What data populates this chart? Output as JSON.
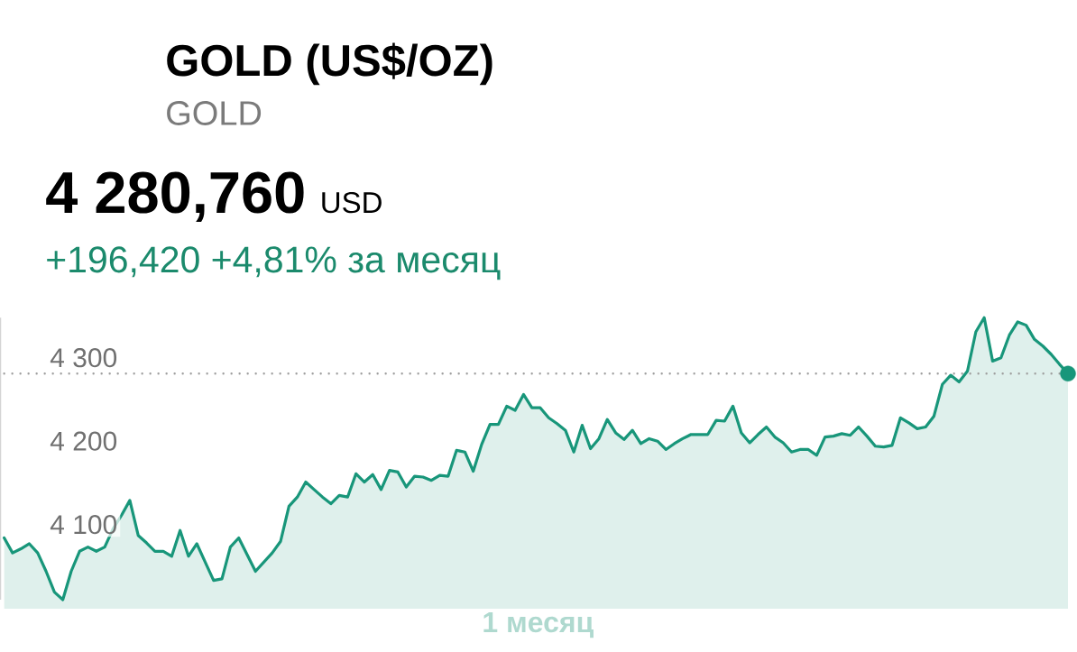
{
  "chart_data": {
    "type": "area",
    "title": "GOLD (US$/OZ)",
    "subtitle": "GOLD",
    "annotations": [
      "4 280,760",
      "USD",
      "+196,420 +4,81% за месяц"
    ],
    "xlabel": "1 месяц",
    "categories": [
      null,
      null,
      null,
      null,
      null,
      null,
      null,
      null,
      null,
      null,
      null,
      null,
      null,
      null,
      null,
      null,
      null,
      null,
      null,
      null,
      null,
      null,
      null,
      null,
      null,
      null,
      null,
      null,
      null,
      null,
      null,
      null,
      null,
      null,
      null,
      null,
      null,
      null,
      null,
      null,
      null,
      null,
      null,
      null,
      null,
      null,
      null,
      null,
      null,
      null,
      null,
      null,
      null,
      null,
      null,
      null,
      null,
      null,
      null,
      null,
      null,
      null,
      null,
      null,
      null,
      null,
      null,
      null,
      null,
      null,
      null,
      null,
      null,
      null,
      null,
      null,
      null,
      null,
      null,
      null,
      null,
      null,
      null,
      null,
      null,
      null,
      null,
      null,
      null,
      null,
      null,
      null,
      null,
      null,
      null,
      null,
      null,
      null,
      null,
      null,
      null,
      null,
      null,
      null,
      null,
      null,
      null,
      null,
      null,
      null,
      null,
      null,
      null,
      null,
      null,
      null,
      null,
      null,
      null,
      null,
      null,
      null,
      null,
      null,
      null,
      null,
      null,
      null
    ],
    "series": [
      {
        "color": "#18967a",
        "values": [
          4084,
          4066,
          4071,
          4077,
          4066,
          4044,
          4019,
          4010,
          4044,
          4068,
          4073,
          4068,
          4073,
          4095,
          4111,
          4129,
          4087,
          4078,
          4068,
          4068,
          4062,
          4093,
          4062,
          4077,
          4055,
          4033,
          4035,
          4073,
          4084,
          4064,
          4044,
          4055,
          4066,
          4080,
          4122,
          4133,
          4151,
          4142,
          4133,
          4125,
          4135,
          4133,
          4161,
          4151,
          4160,
          4142,
          4165,
          4163,
          4145,
          4158,
          4157,
          4153,
          4159,
          4158,
          4189,
          4187,
          4164,
          4196,
          4220,
          4220,
          4242,
          4237,
          4256,
          4240,
          4240,
          4228,
          4221,
          4213,
          4187,
          4219,
          4191,
          4203,
          4226,
          4210,
          4202,
          4213,
          4197,
          4203,
          4200,
          4190,
          4197,
          4203,
          4208,
          4208,
          4208,
          4225,
          4224,
          4242,
          4210,
          4198,
          4208,
          4217,
          4205,
          4198,
          4187,
          4190,
          4190,
          4183,
          4205,
          4206,
          4209,
          4207,
          4217,
          4206,
          4194,
          4193,
          4195,
          4228,
          4222,
          4215,
          4217,
          4230,
          4268,
          4279,
          4271,
          4284,
          4331,
          4348,
          4296,
          4300,
          4327,
          4343,
          4339,
          4322,
          4314,
          4304,
          4292,
          4281
        ]
      },
      {
        "type": "scatter",
        "color": "#18967a",
        "values": [
          null,
          null,
          null,
          null,
          null,
          null,
          null,
          null,
          null,
          null,
          null,
          null,
          null,
          null,
          null,
          null,
          null,
          null,
          null,
          null,
          null,
          null,
          null,
          null,
          null,
          null,
          null,
          null,
          null,
          null,
          null,
          null,
          null,
          null,
          null,
          null,
          null,
          null,
          null,
          null,
          null,
          null,
          null,
          null,
          null,
          null,
          null,
          null,
          null,
          null,
          null,
          null,
          null,
          null,
          null,
          null,
          null,
          null,
          null,
          null,
          null,
          null,
          null,
          null,
          null,
          null,
          null,
          null,
          null,
          null,
          null,
          null,
          null,
          null,
          null,
          null,
          null,
          null,
          null,
          null,
          null,
          null,
          null,
          null,
          null,
          null,
          null,
          null,
          null,
          null,
          null,
          null,
          null,
          null,
          null,
          null,
          null,
          null,
          null,
          null,
          null,
          null,
          null,
          null,
          null,
          null,
          null,
          null,
          null,
          null,
          null,
          null,
          null,
          null,
          null,
          null,
          null,
          null,
          null,
          null,
          null,
          null,
          null,
          null,
          null,
          null,
          null,
          4281
        ]
      }
    ],
    "ylim": [
      4010,
      4348
    ],
    "yticks": [
      {
        "value": 4100,
        "label": "4 100"
      },
      {
        "value": 4200,
        "label": "4 200"
      },
      {
        "value": 4300,
        "label": "4 300"
      }
    ],
    "ref_lines": [
      {
        "axis": "y",
        "value": 4281,
        "line_style": "dotted",
        "color": "#9e9e9e"
      }
    ]
  }
}
